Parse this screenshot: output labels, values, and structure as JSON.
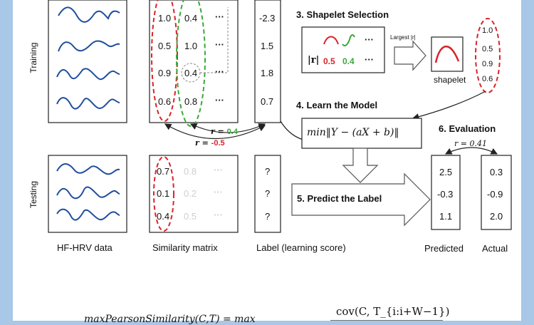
{
  "side_labels": {
    "training": "Training",
    "testing": "Testing"
  },
  "training": {
    "similarity_rows": [
      [
        "1.0",
        "0.4",
        "···"
      ],
      [
        "0.5",
        "1.0",
        "···"
      ],
      [
        "0.9",
        "0.4",
        "···"
      ],
      [
        "0.6",
        "0.8",
        "···"
      ]
    ],
    "labels": [
      "-2.3",
      "1.5",
      "1.8",
      "0.7"
    ]
  },
  "testing": {
    "similarity_rows": [
      [
        "0.7",
        "0.8",
        "···"
      ],
      [
        "0.1",
        "0.2",
        "···"
      ],
      [
        "0.4",
        "0.5",
        "···"
      ]
    ],
    "labels": [
      "?",
      "?",
      "?"
    ]
  },
  "correlations": {
    "r_green": {
      "prefix": "r = ",
      "value": "0.4"
    },
    "r_red": {
      "prefix": "r = ",
      "value": "-0.5"
    }
  },
  "step3": {
    "title": "3. Shapelet Selection",
    "abs_r": "|r|",
    "val_red": "0.5",
    "val_green": "0.4",
    "dots": "···",
    "arrow_label": "Largest |r|",
    "shapelet_caption": "shapelet",
    "selected_values": [
      "1.0",
      "0.5",
      "0.9",
      "0.6"
    ]
  },
  "step4": {
    "title": "4. Learn the Model",
    "formula": "min‖Y − (aX + b)‖"
  },
  "step5": {
    "title": "5. Predict the Label"
  },
  "step6": {
    "title": "6. Evaluation",
    "r_text": "r = 0.41",
    "predicted": [
      "2.5",
      "-0.3",
      "1.1"
    ],
    "actual": [
      "0.3",
      "-0.9",
      "2.0"
    ],
    "predicted_label": "Predicted",
    "actual_label": "Actual"
  },
  "captions": {
    "hrv": "HF-HRV data",
    "similarity": "Similarity matrix",
    "label": "Label (learning score)"
  },
  "formula_bottom": {
    "lhs": "maxPearsonSimilarity(C,T) = max",
    "numerator": "cov(C, T_{i:i+W−1})"
  },
  "colors": {
    "red": "#d9232a",
    "green": "#3aa83a",
    "background": "#a9c7e6",
    "wave": "#1f4e9c"
  }
}
